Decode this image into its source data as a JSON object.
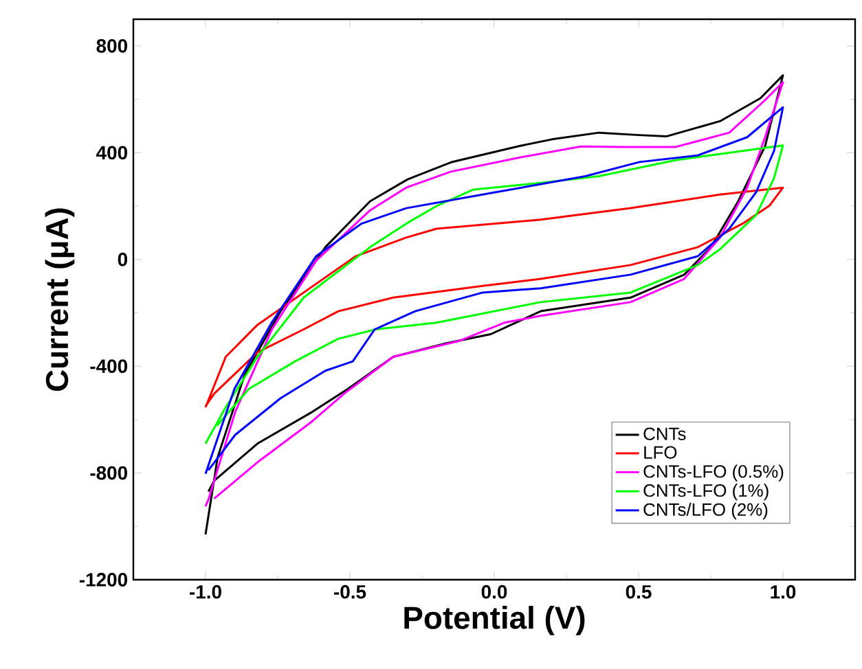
{
  "chart_data": {
    "type": "line",
    "xlabel": "Potential (V)",
    "ylabel": "Current (μA)",
    "xlim": [
      -1.25,
      1.25
    ],
    "ylim": [
      -1200,
      900
    ],
    "xticks": [
      {
        "value": -1,
        "label": "-1.0"
      },
      {
        "value": -0.5,
        "label": "-0.5"
      },
      {
        "value": 0,
        "label": "0.0"
      },
      {
        "value": 0.5,
        "label": "0.5"
      },
      {
        "value": 1,
        "label": "1.0"
      }
    ],
    "yticks": [
      -1200,
      -800,
      -400,
      0,
      400,
      800
    ],
    "legend": "bottom right",
    "line_style": "solid",
    "marker": "none",
    "series": [
      {
        "name": "CNTs",
        "color": "#000000",
        "x": [
          -1,
          -0.958,
          -0.865,
          -0.74,
          -0.585,
          -0.43,
          -0.3,
          -0.15,
          0.083,
          0.2,
          0.363,
          0.5,
          0.596,
          0.782,
          0.922,
          1.0,
          0.938,
          0.845,
          0.751,
          0.658,
          0.472,
          0.161,
          -0.012,
          -0.166,
          -0.35,
          -0.507,
          -0.63,
          -0.82,
          -0.97,
          -0.99
        ],
        "values": [
          -1030,
          -741,
          -433,
          -194,
          46,
          218,
          300,
          364,
          424,
          450,
          475,
          466,
          461,
          518,
          604,
          690,
          424,
          218,
          46,
          -57,
          -143,
          -194,
          -280,
          -314,
          -365,
          -485,
          -571,
          -690,
          -829,
          -870
        ]
      },
      {
        "name": "LFO",
        "color": "#ff0000",
        "x": [
          -1,
          -0.93,
          -0.82,
          -0.66,
          -0.48,
          -0.305,
          -0.2,
          0.161,
          0.472,
          0.782,
          1.0,
          0.953,
          0.86,
          0.705,
          0.472,
          0.161,
          -0.04,
          -0.35,
          -0.54,
          -0.66,
          -0.82,
          -0.97,
          -1
        ],
        "values": [
          -554,
          -365,
          -245,
          -124,
          12,
          82,
          115,
          149,
          192,
          243,
          269,
          201,
          134,
          46,
          -21,
          -73,
          -99,
          -143,
          -194,
          -262,
          -348,
          -503,
          -550
        ]
      },
      {
        "name": "CNTs-LFO (0.5%)",
        "color": "#ff00ff",
        "x": [
          -1,
          -0.99,
          -0.897,
          -0.77,
          -0.617,
          -0.43,
          -0.305,
          -0.15,
          0.083,
          0.3,
          0.44,
          0.627,
          0.814,
          0.938,
          1.0,
          0.938,
          0.876,
          0.782,
          0.658,
          0.472,
          0.161,
          0.035,
          -0.12,
          -0.35,
          -0.52,
          -0.63,
          -0.82,
          -0.97
        ],
        "values": [
          -925,
          -900,
          -571,
          -262,
          -5,
          184,
          269,
          329,
          381,
          423,
          421,
          421,
          475,
          597,
          664,
          458,
          269,
          82,
          -73,
          -160,
          -211,
          -237,
          -305,
          -365,
          -503,
          -606,
          -760,
          -896
        ]
      },
      {
        "name": "CNTs-LFO (1%)",
        "color": "#00ff00",
        "x": [
          -1,
          -0.93,
          -0.82,
          -0.66,
          -0.43,
          -0.305,
          -0.2,
          -0.072,
          0.161,
          0.363,
          0.627,
          1.0,
          0.969,
          0.907,
          0.782,
          0.705,
          0.472,
          0.161,
          -0.2,
          -0.41,
          -0.54,
          -0.69,
          -0.85,
          -0.96
        ],
        "values": [
          -690,
          -554,
          -365,
          -143,
          46,
          134,
          200,
          262,
          287,
          312,
          372,
          427,
          304,
          166,
          38,
          -21,
          -124,
          -160,
          -237,
          -262,
          -297,
          -382,
          -485,
          -622
        ]
      },
      {
        "name": "CNTs/LFO (2%)",
        "color": "#0000ff",
        "x": [
          -1,
          -0.9,
          -0.77,
          -0.617,
          -0.46,
          -0.305,
          0.006,
          0.316,
          0.503,
          0.705,
          0.876,
          1.0,
          0.969,
          0.907,
          0.814,
          0.705,
          0.472,
          0.161,
          -0.04,
          -0.274,
          -0.414,
          -0.49,
          -0.585,
          -0.74,
          -0.897,
          -0.99
        ],
        "values": [
          -803,
          -485,
          -235,
          12,
          134,
          192,
          252,
          312,
          365,
          390,
          458,
          570,
          406,
          252,
          115,
          12,
          -57,
          -108,
          -124,
          -194,
          -262,
          -382,
          -417,
          -520,
          -657,
          -790
        ]
      }
    ]
  }
}
